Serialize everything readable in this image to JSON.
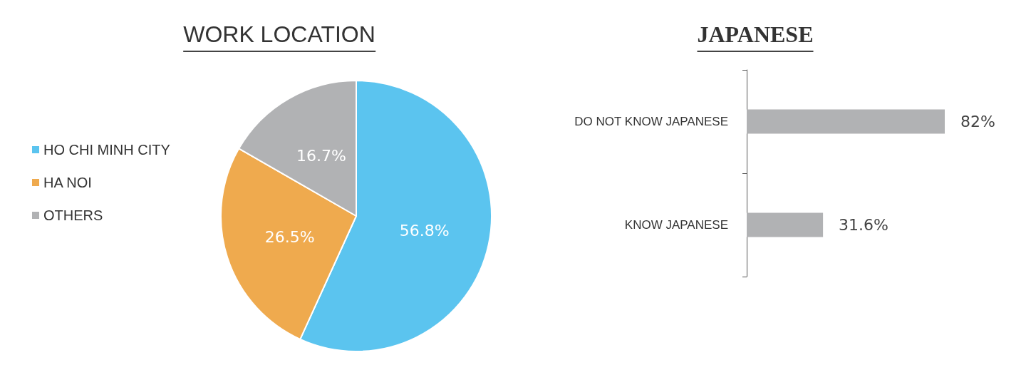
{
  "chart_data": [
    {
      "type": "pie",
      "title": "WORK LOCATION",
      "categories": [
        "HO CHI MINH CITY",
        "HA NOI",
        "OTHERS"
      ],
      "values": [
        56.8,
        26.5,
        16.7
      ],
      "colors": [
        "#5bc4ef",
        "#efaa4e",
        "#b1b2b4"
      ],
      "value_labels": [
        "56.8%",
        "26.5%",
        "16.7%"
      ],
      "legend": "left"
    },
    {
      "type": "bar",
      "title": "JAPANESE",
      "orientation": "horizontal",
      "categories": [
        "DO NOT KNOW JAPANESE",
        "KNOW JAPANESE"
      ],
      "values": [
        82,
        31.6
      ],
      "value_labels": [
        "82%",
        "31.6%"
      ],
      "color": "#b1b2b4",
      "tick_labels": "y"
    }
  ]
}
